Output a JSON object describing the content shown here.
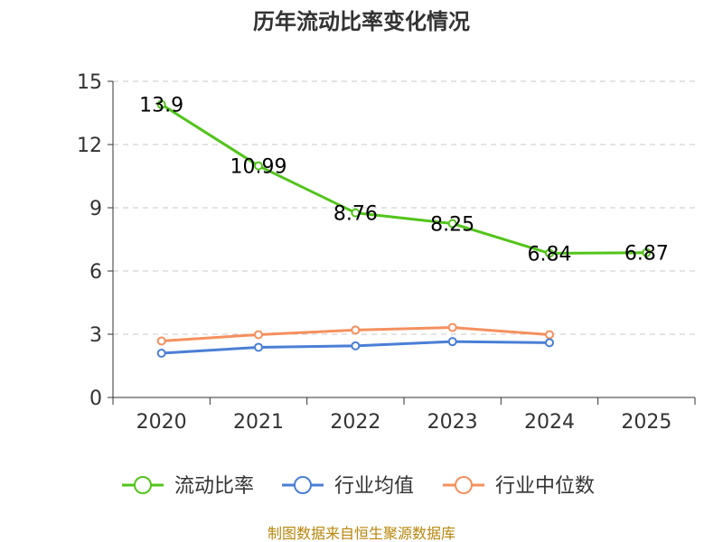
{
  "chart_data": {
    "type": "line",
    "title": "历年流动比率变化情况",
    "categories": [
      "2020",
      "2021",
      "2022",
      "2023",
      "2024",
      "2025"
    ],
    "ylim": [
      0,
      15
    ],
    "yticks": [
      0,
      3,
      6,
      9,
      12,
      15
    ],
    "grid": true,
    "legend_position": "bottom",
    "series": [
      {
        "name": "流动比率",
        "color": "#52c41a",
        "values": [
          13.9,
          10.99,
          8.76,
          8.25,
          6.84,
          6.87
        ],
        "show_labels": true,
        "labels": [
          "13.9",
          "10.99",
          "8.76",
          "8.25",
          "6.84",
          "6.87"
        ]
      },
      {
        "name": "行业均值",
        "color": "#4a7fd6",
        "values": [
          2.1,
          2.38,
          2.45,
          2.65,
          2.6,
          null
        ],
        "show_labels": false
      },
      {
        "name": "行业中位数",
        "color": "#f5905e",
        "values": [
          2.68,
          2.98,
          3.2,
          3.32,
          2.98,
          null
        ],
        "show_labels": false
      }
    ],
    "source": "制图数据来自恒生聚源数据库"
  }
}
